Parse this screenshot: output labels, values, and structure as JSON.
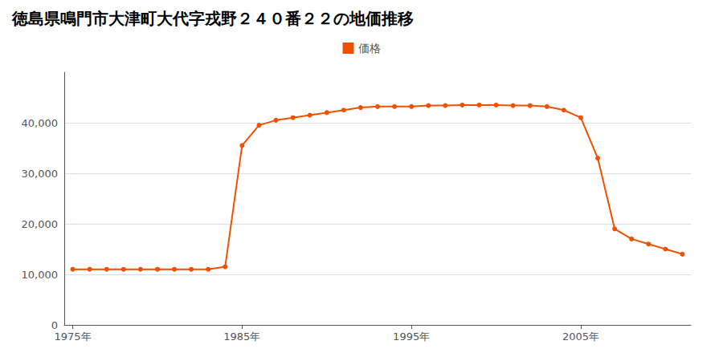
{
  "chart_data": {
    "type": "line",
    "title": "徳島県鳴門市大津町大代字戎野２４０番２２の地価推移",
    "x": [
      1975,
      1976,
      1977,
      1978,
      1979,
      1980,
      1981,
      1982,
      1983,
      1984,
      1985,
      1986,
      1987,
      1988,
      1989,
      1990,
      1991,
      1992,
      1993,
      1994,
      1995,
      1996,
      1997,
      1998,
      1999,
      2000,
      2001,
      2002,
      2003,
      2004,
      2005,
      2006,
      2007,
      2008,
      2009,
      2010,
      2011
    ],
    "series": [
      {
        "name": "価格",
        "color": "#f05000",
        "marker": "circle",
        "values": [
          11000,
          11000,
          11000,
          11000,
          11000,
          11000,
          11000,
          11000,
          11000,
          11500,
          35500,
          39500,
          40500,
          41000,
          41500,
          42000,
          42500,
          43000,
          43200,
          43200,
          43200,
          43400,
          43400,
          43500,
          43500,
          43500,
          43400,
          43400,
          43200,
          42500,
          41000,
          33000,
          19000,
          17000,
          16000,
          15000,
          14000
        ]
      }
    ],
    "xlim": [
      1974.5,
      2011.5
    ],
    "xticks": [
      {
        "value": 1975,
        "label": "1975年"
      },
      {
        "value": 1985,
        "label": "1985年"
      },
      {
        "value": 1995,
        "label": "1995年"
      },
      {
        "value": 2005,
        "label": "2005年"
      }
    ],
    "ylim": [
      0,
      50000
    ],
    "yticks": [
      0,
      {
        "value": 10000,
        "label": "10,000"
      },
      {
        "value": 20000,
        "label": "20,000"
      },
      {
        "value": 30000,
        "label": "30,000"
      },
      {
        "value": 40000,
        "label": "40,000"
      }
    ],
    "grid": true,
    "legend": "top"
  }
}
